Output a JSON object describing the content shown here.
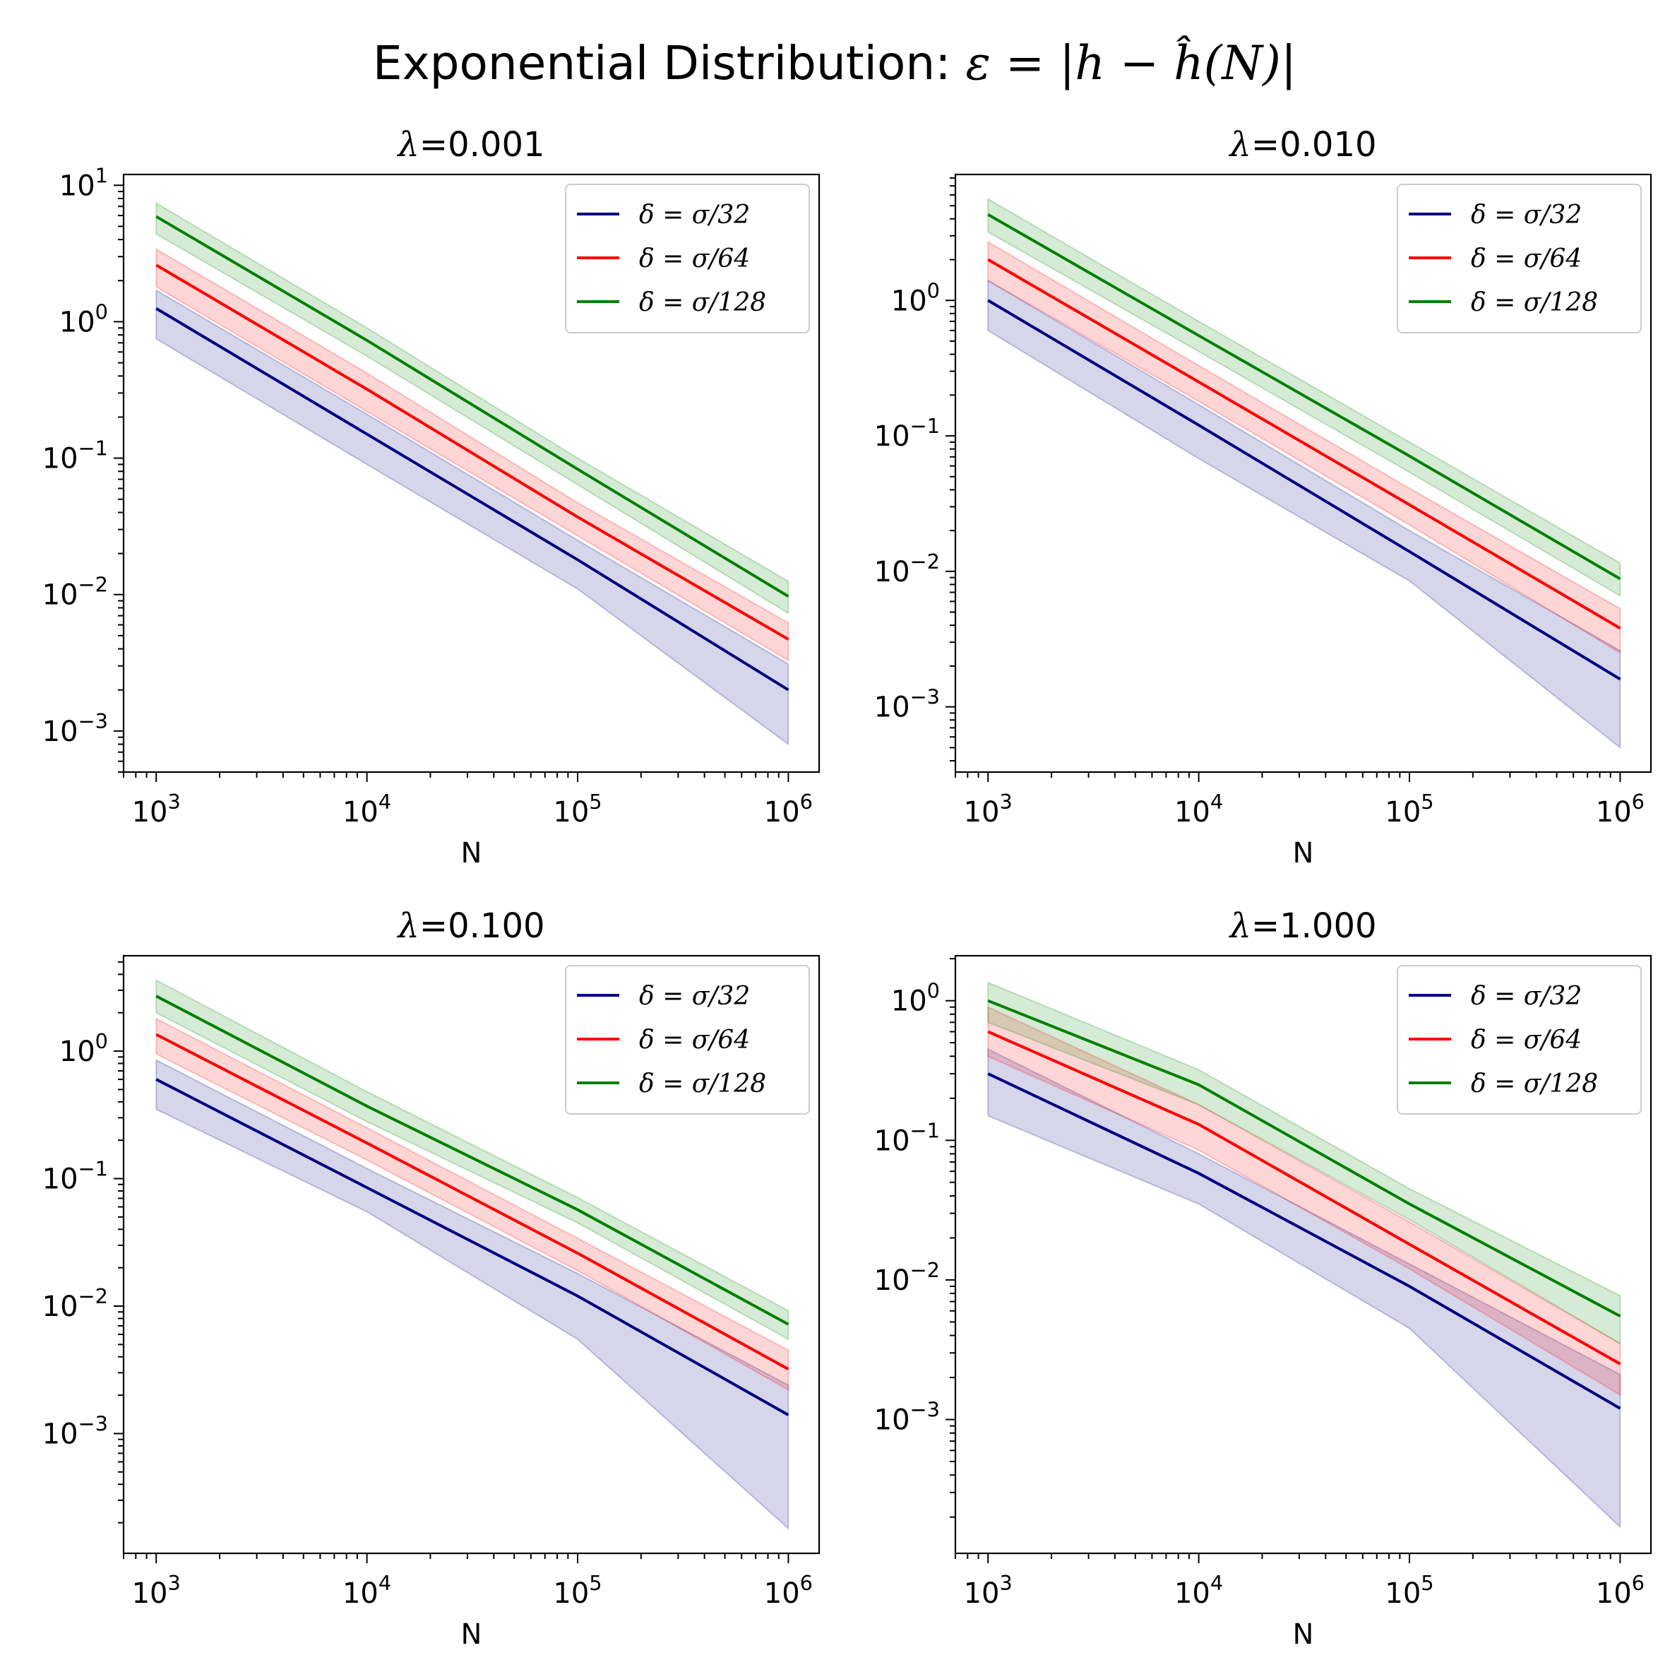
{
  "figure": {
    "suptitle": "Exponential Distribution: ",
    "suptitle_math": "ε = |h − ĥ(N)|"
  },
  "legend_labels": [
    "δ = σ/32",
    "δ = σ/64",
    "δ = σ/128"
  ],
  "colors": {
    "sigma32": "#000080",
    "sigma64": "#ff0000",
    "sigma128": "#008000"
  },
  "chart_data": [
    {
      "type": "line",
      "title": "λ=0.001",
      "xlabel": "N",
      "ylabel": "",
      "xscale": "log",
      "yscale": "log",
      "grid": false,
      "legend_position": "upper right",
      "x": [
        1000,
        10000,
        100000,
        1000000
      ],
      "xlim": [
        700,
        1400000
      ],
      "ylim": [
        0.0005,
        12
      ],
      "x_ticks": [
        "10^3",
        "10^4",
        "10^5",
        "10^6"
      ],
      "y_ticks": [
        "10^-3",
        "10^-2",
        "10^-1",
        "10^0",
        "10^1"
      ],
      "series": [
        {
          "name": "δ = σ/32",
          "color": "#000080",
          "values": [
            1.25,
            0.15,
            0.018,
            0.002
          ],
          "lower": [
            0.75,
            0.09,
            0.011,
            0.0008
          ],
          "upper": [
            1.7,
            0.21,
            0.025,
            0.0031
          ]
        },
        {
          "name": "δ = σ/64",
          "color": "#ff0000",
          "values": [
            2.6,
            0.32,
            0.037,
            0.0047
          ],
          "lower": [
            1.8,
            0.22,
            0.027,
            0.0033
          ],
          "upper": [
            3.4,
            0.42,
            0.047,
            0.0062
          ]
        },
        {
          "name": "δ = σ/128",
          "color": "#008000",
          "values": [
            5.9,
            0.73,
            0.083,
            0.0097
          ],
          "lower": [
            4.4,
            0.56,
            0.064,
            0.0073
          ],
          "upper": [
            7.4,
            0.9,
            0.1,
            0.0125
          ]
        }
      ]
    },
    {
      "type": "line",
      "title": "λ=0.010",
      "xlabel": "N",
      "ylabel": "",
      "xscale": "log",
      "yscale": "log",
      "grid": false,
      "legend_position": "upper right",
      "x": [
        1000,
        10000,
        100000,
        1000000
      ],
      "xlim": [
        700,
        1400000
      ],
      "ylim": [
        0.00033,
        8.5
      ],
      "x_ticks": [
        "10^3",
        "10^4",
        "10^5",
        "10^6"
      ],
      "y_ticks": [
        "10^-3",
        "10^-2",
        "10^-1",
        "10^0"
      ],
      "series": [
        {
          "name": "δ = σ/32",
          "color": "#000080",
          "values": [
            1.0,
            0.12,
            0.014,
            0.0016
          ],
          "lower": [
            0.6,
            0.068,
            0.0085,
            0.0005
          ],
          "upper": [
            1.4,
            0.17,
            0.02,
            0.0026
          ]
        },
        {
          "name": "δ = σ/64",
          "color": "#ff0000",
          "values": [
            2.0,
            0.25,
            0.031,
            0.0038
          ],
          "lower": [
            1.4,
            0.18,
            0.022,
            0.0025
          ],
          "upper": [
            2.7,
            0.33,
            0.041,
            0.0053
          ]
        },
        {
          "name": "δ = σ/128",
          "color": "#008000",
          "values": [
            4.3,
            0.55,
            0.071,
            0.0088
          ],
          "lower": [
            3.2,
            0.42,
            0.054,
            0.0066
          ],
          "upper": [
            5.6,
            0.7,
            0.09,
            0.0115
          ]
        }
      ]
    },
    {
      "type": "line",
      "title": "λ=0.100",
      "xlabel": "N",
      "ylabel": "",
      "xscale": "log",
      "yscale": "log",
      "grid": false,
      "legend_position": "upper right",
      "x": [
        1000,
        10000,
        100000,
        1000000
      ],
      "xlim": [
        700,
        1400000
      ],
      "ylim": [
        0.000115,
        5.6
      ],
      "x_ticks": [
        "10^3",
        "10^4",
        "10^5",
        "10^6"
      ],
      "y_ticks": [
        "10^-3",
        "10^-2",
        "10^-1",
        "10^0"
      ],
      "series": [
        {
          "name": "δ = σ/32",
          "color": "#000080",
          "values": [
            0.6,
            0.085,
            0.012,
            0.0014
          ],
          "lower": [
            0.35,
            0.055,
            0.0055,
            0.00018
          ],
          "upper": [
            0.85,
            0.12,
            0.018,
            0.0024
          ]
        },
        {
          "name": "δ = σ/64",
          "color": "#ff0000",
          "values": [
            1.35,
            0.19,
            0.026,
            0.0032
          ],
          "lower": [
            0.95,
            0.14,
            0.019,
            0.0022
          ],
          "upper": [
            1.8,
            0.25,
            0.034,
            0.0045
          ]
        },
        {
          "name": "δ = σ/128",
          "color": "#008000",
          "values": [
            2.7,
            0.37,
            0.057,
            0.0072
          ],
          "lower": [
            2.0,
            0.28,
            0.045,
            0.0055
          ],
          "upper": [
            3.6,
            0.48,
            0.071,
            0.0092
          ]
        }
      ]
    },
    {
      "type": "line",
      "title": "λ=1.000",
      "xlabel": "N",
      "ylabel": "",
      "xscale": "log",
      "yscale": "log",
      "grid": false,
      "legend_position": "upper right",
      "x": [
        1000,
        10000,
        100000,
        1000000
      ],
      "xlim": [
        700,
        1400000
      ],
      "ylim": [
        0.00011,
        2.1
      ],
      "x_ticks": [
        "10^3",
        "10^4",
        "10^5",
        "10^6"
      ],
      "y_ticks": [
        "10^-3",
        "10^-2",
        "10^-1",
        "10^0"
      ],
      "series": [
        {
          "name": "δ = σ/32",
          "color": "#000080",
          "values": [
            0.3,
            0.058,
            0.009,
            0.0012
          ],
          "lower": [
            0.15,
            0.035,
            0.0045,
            0.00017
          ],
          "upper": [
            0.45,
            0.08,
            0.013,
            0.0021
          ]
        },
        {
          "name": "δ = σ/64",
          "color": "#ff0000",
          "values": [
            0.6,
            0.13,
            0.018,
            0.0025
          ],
          "lower": [
            0.4,
            0.085,
            0.012,
            0.0015
          ],
          "upper": [
            0.9,
            0.18,
            0.026,
            0.0035
          ]
        },
        {
          "name": "δ = σ/128",
          "color": "#008000",
          "values": [
            1.0,
            0.25,
            0.035,
            0.0055
          ],
          "lower": [
            0.7,
            0.18,
            0.027,
            0.0035
          ],
          "upper": [
            1.35,
            0.32,
            0.045,
            0.0077
          ]
        }
      ]
    }
  ]
}
